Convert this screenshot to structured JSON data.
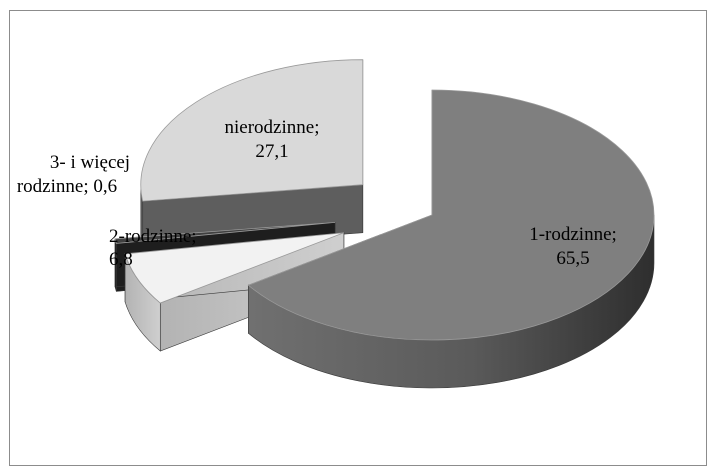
{
  "chart_data": {
    "type": "pie",
    "title": "",
    "slices": [
      {
        "label": "1-rodzinne",
        "value": 65.5,
        "display": "65,5",
        "color": "#7f7f7f"
      },
      {
        "label": "2-rodzinne",
        "value": 6.8,
        "display": "6,8",
        "color": "#f2f2f2"
      },
      {
        "label": "3- i więcej rodzinne",
        "value": 0.6,
        "display": "0,6",
        "color": "#404040"
      },
      {
        "label": "nierodzinne",
        "value": 27.1,
        "display": "27,1",
        "color": "#d9d9d9"
      }
    ],
    "legend": "none",
    "exploded": true,
    "three_d": true
  }
}
